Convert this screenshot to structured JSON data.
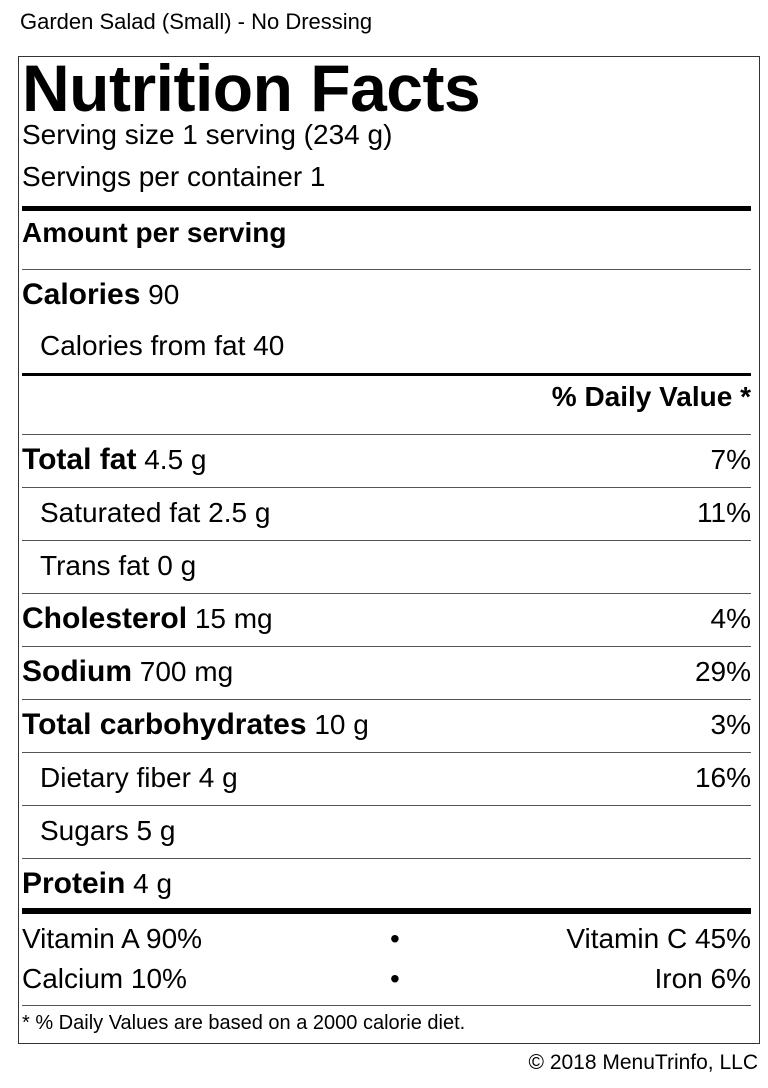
{
  "item_title": "Garden Salad (Small) - No Dressing",
  "label": {
    "heading": "Nutrition Facts",
    "serving_size": "Serving size 1 serving (234 g)",
    "servings_per_container": "Servings per container 1",
    "amount_per_serving": "Amount per serving",
    "calories_label": "Calories",
    "calories_value": "90",
    "calories_from_fat": "Calories from fat 40",
    "dv_header": "% Daily Value *",
    "nutrients": [
      {
        "name": "Total fat",
        "amount": "4.5 g",
        "dv": "7%"
      },
      {
        "name": "Saturated fat",
        "amount": "2.5 g",
        "dv": "11%"
      },
      {
        "name": "Trans fat",
        "amount": "0 g",
        "dv": ""
      },
      {
        "name": "Cholesterol",
        "amount": "15 mg",
        "dv": "4%"
      },
      {
        "name": "Sodium",
        "amount": "700 mg",
        "dv": "29%"
      },
      {
        "name": "Total carbohydrates",
        "amount": "10 g",
        "dv": "3%"
      },
      {
        "name": "Dietary fiber",
        "amount": "4 g",
        "dv": "16%"
      },
      {
        "name": "Sugars",
        "amount": "5 g",
        "dv": ""
      },
      {
        "name": "Protein",
        "amount": "4 g",
        "dv": ""
      }
    ],
    "vitamins": [
      {
        "left": "Vitamin A 90%",
        "right": "Vitamin C 45%"
      },
      {
        "left": "Calcium 10%",
        "right": "Iron 6%"
      }
    ],
    "bullet": "•",
    "footnote": "* % Daily Values are based on a 2000 calorie diet."
  },
  "copyright": "© 2018 MenuTrinfo, LLC"
}
